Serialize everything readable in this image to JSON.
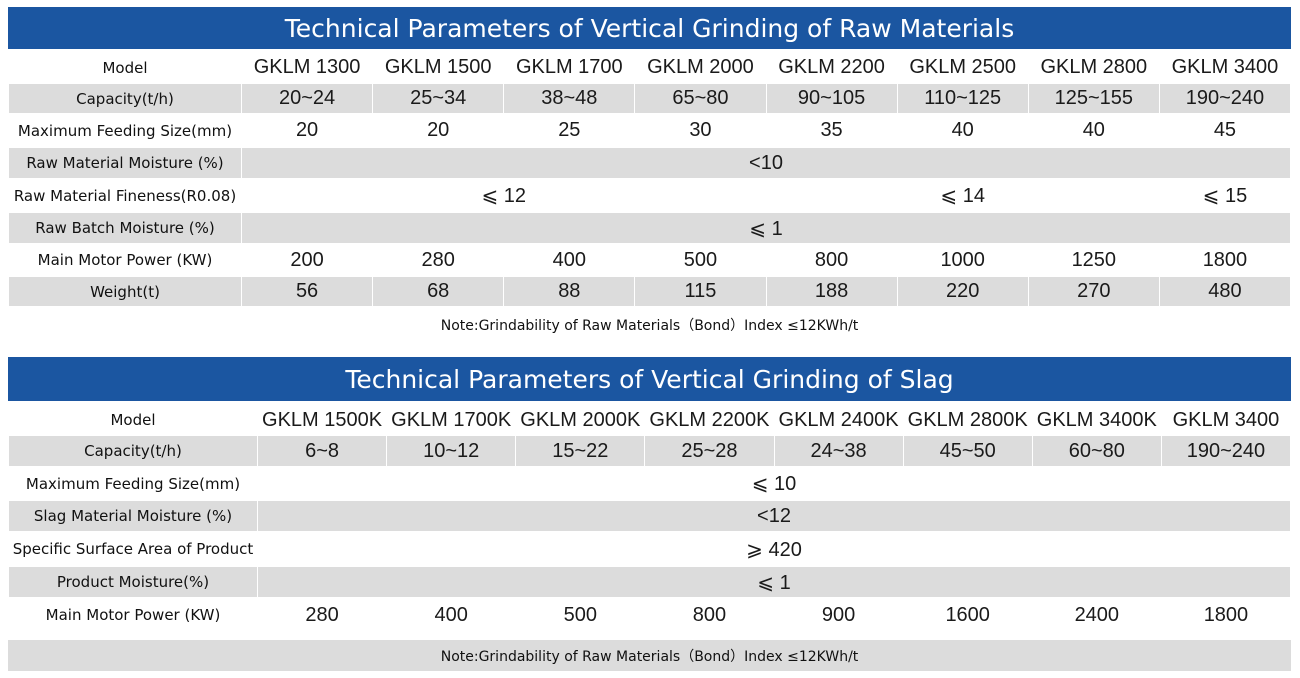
{
  "raw": {
    "title": "Technical Parameters of Vertical Grinding of Raw Materials",
    "model_label": "Model",
    "models": [
      "GKLM 1300",
      "GKLM 1500",
      "GKLM 1700",
      "GKLM 2000",
      "GKLM 2200",
      "GKLM 2500",
      "GKLM 2800",
      "GKLM 3400"
    ],
    "capacity_label": "Capacity(t/h)",
    "capacity": [
      "20~24",
      "25~34",
      "38~48",
      "65~80",
      "90~105",
      "110~125",
      "125~155",
      "190~240"
    ],
    "feeding_label": "Maximum Feeding Size(mm)",
    "feeding": [
      "20",
      "20",
      "25",
      "30",
      "35",
      "40",
      "40",
      "45"
    ],
    "moisture_label": "Raw Material Moisture (%)",
    "moisture": "<10",
    "fineness_label": "Raw Material Fineness(R0.08)",
    "fineness": [
      "⩽ 12",
      "⩽ 14",
      "⩽ 15"
    ],
    "batch_label": "Raw Batch Moisture (%)",
    "batch": "⩽ 1",
    "power_label": "Main Motor Power (KW)",
    "power": [
      "200",
      "280",
      "400",
      "500",
      "800",
      "1000",
      "1250",
      "1800"
    ],
    "weight_label": "Weight(t)",
    "weight": [
      "56",
      "68",
      "88",
      "115",
      "188",
      "220",
      "270",
      "480"
    ],
    "note": "Note:Grindability of Raw Materials（Bond）Index ≤12KWh/t"
  },
  "slag": {
    "title": "Technical Parameters of Vertical Grinding of Slag",
    "model_label": "Model",
    "models": [
      "GKLM 1500K",
      "GKLM 1700K",
      "GKLM 2000K",
      "GKLM 2200K",
      "GKLM 2400K",
      "GKLM 2800K",
      "GKLM 3400K",
      "GKLM 3400"
    ],
    "capacity_label": "Capacity(t/h)",
    "capacity": [
      "6~8",
      "10~12",
      "15~22",
      "25~28",
      "24~38",
      "45~50",
      "60~80",
      "190~240"
    ],
    "feeding_label": "Maximum Feeding Size(mm)",
    "feeding": "⩽ 10",
    "moisture_label": "Slag Material Moisture (%)",
    "moisture": "<12",
    "surface_label": "Specific Surface Area of Product",
    "surface": "⩾ 420",
    "product_moisture_label": "Product Moisture(%)",
    "product_moisture": "⩽ 1",
    "power_label": "Main Motor Power (KW)",
    "power": [
      "280",
      "400",
      "500",
      "800",
      "900",
      "1600",
      "2400",
      "1800"
    ],
    "note": "Note:Grindability of Raw Materials（Bond）Index ≤12KWh/t"
  }
}
